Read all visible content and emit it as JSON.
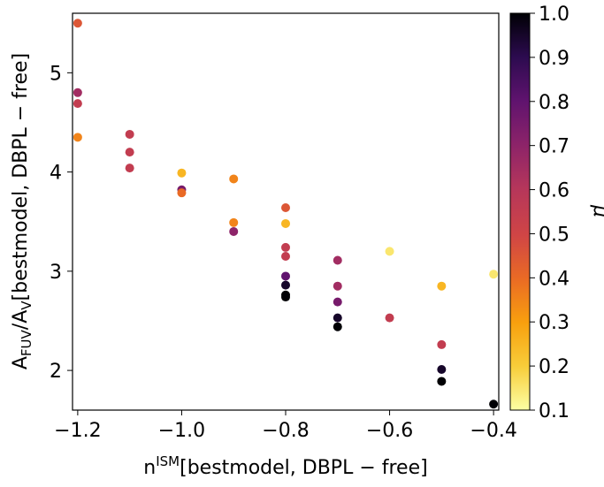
{
  "chart_data": {
    "type": "scatter",
    "xlabel": "n^ISM[bestmodel, DBPL − free]",
    "xlabel_parts": {
      "main": "n",
      "sup": "ISM",
      "rest": "[bestmodel, DBPL − free]"
    },
    "ylabel": "A_FUV/A_V[bestmodel, DBPL − free]",
    "ylabel_parts": {
      "a1": "A",
      "sub1": "FUV",
      "mid": "/A",
      "sub2": "V",
      "rest": "[bestmodel, DBPL − free]"
    },
    "xlim": [
      -1.21,
      -0.39
    ],
    "ylim": [
      1.6,
      5.6
    ],
    "xticks": [
      -1.2,
      -1.0,
      -0.8,
      -0.6,
      -0.4
    ],
    "xtick_labels": [
      "−1.2",
      "−1.0",
      "−0.8",
      "−0.6",
      "−0.4"
    ],
    "yticks": [
      2,
      3,
      4,
      5
    ],
    "ytick_labels": [
      "2",
      "3",
      "4",
      "5"
    ],
    "colorbar": {
      "label": "μ",
      "range": [
        0.1,
        1.0
      ],
      "ticks": [
        0.1,
        0.2,
        0.3,
        0.4,
        0.5,
        0.6,
        0.7,
        0.8,
        0.9,
        1.0
      ],
      "tick_labels": [
        "0.1",
        "0.2",
        "0.3",
        "0.4",
        "0.5",
        "0.6",
        "0.7",
        "0.8",
        "0.9",
        "1.0"
      ],
      "colormap": "inferno_r"
    },
    "points": [
      {
        "x": -1.2,
        "y": 5.5,
        "mu": 0.45
      },
      {
        "x": -1.2,
        "y": 4.8,
        "mu": 0.65
      },
      {
        "x": -1.2,
        "y": 4.69,
        "mu": 0.55
      },
      {
        "x": -1.2,
        "y": 4.35,
        "mu": 0.35
      },
      {
        "x": -1.1,
        "y": 4.38,
        "mu": 0.55
      },
      {
        "x": -1.1,
        "y": 4.2,
        "mu": 0.55
      },
      {
        "x": -1.1,
        "y": 4.04,
        "mu": 0.55
      },
      {
        "x": -1.0,
        "y": 3.99,
        "mu": 0.25
      },
      {
        "x": -1.0,
        "y": 3.82,
        "mu": 0.75
      },
      {
        "x": -1.0,
        "y": 3.79,
        "mu": 0.4
      },
      {
        "x": -0.9,
        "y": 3.93,
        "mu": 0.35
      },
      {
        "x": -0.9,
        "y": 3.49,
        "mu": 0.35
      },
      {
        "x": -0.9,
        "y": 3.4,
        "mu": 0.7
      },
      {
        "x": -0.8,
        "y": 3.64,
        "mu": 0.45
      },
      {
        "x": -0.8,
        "y": 3.48,
        "mu": 0.25
      },
      {
        "x": -0.8,
        "y": 3.24,
        "mu": 0.55
      },
      {
        "x": -0.8,
        "y": 3.15,
        "mu": 0.55
      },
      {
        "x": -0.8,
        "y": 2.95,
        "mu": 0.8
      },
      {
        "x": -0.8,
        "y": 2.86,
        "mu": 0.95
      },
      {
        "x": -0.8,
        "y": 2.76,
        "mu": 1.0
      },
      {
        "x": -0.8,
        "y": 2.74,
        "mu": 1.0
      },
      {
        "x": -0.7,
        "y": 3.11,
        "mu": 0.65
      },
      {
        "x": -0.7,
        "y": 2.85,
        "mu": 0.65
      },
      {
        "x": -0.7,
        "y": 2.69,
        "mu": 0.75
      },
      {
        "x": -0.7,
        "y": 2.53,
        "mu": 0.95
      },
      {
        "x": -0.7,
        "y": 2.44,
        "mu": 1.0
      },
      {
        "x": -0.6,
        "y": 3.2,
        "mu": 0.15
      },
      {
        "x": -0.6,
        "y": 2.53,
        "mu": 0.55
      },
      {
        "x": -0.5,
        "y": 2.85,
        "mu": 0.25
      },
      {
        "x": -0.5,
        "y": 2.26,
        "mu": 0.55
      },
      {
        "x": -0.5,
        "y": 2.01,
        "mu": 0.95
      },
      {
        "x": -0.5,
        "y": 1.89,
        "mu": 1.0
      },
      {
        "x": -0.4,
        "y": 2.97,
        "mu": 0.15
      },
      {
        "x": -0.4,
        "y": 1.66,
        "mu": 1.0
      }
    ]
  }
}
